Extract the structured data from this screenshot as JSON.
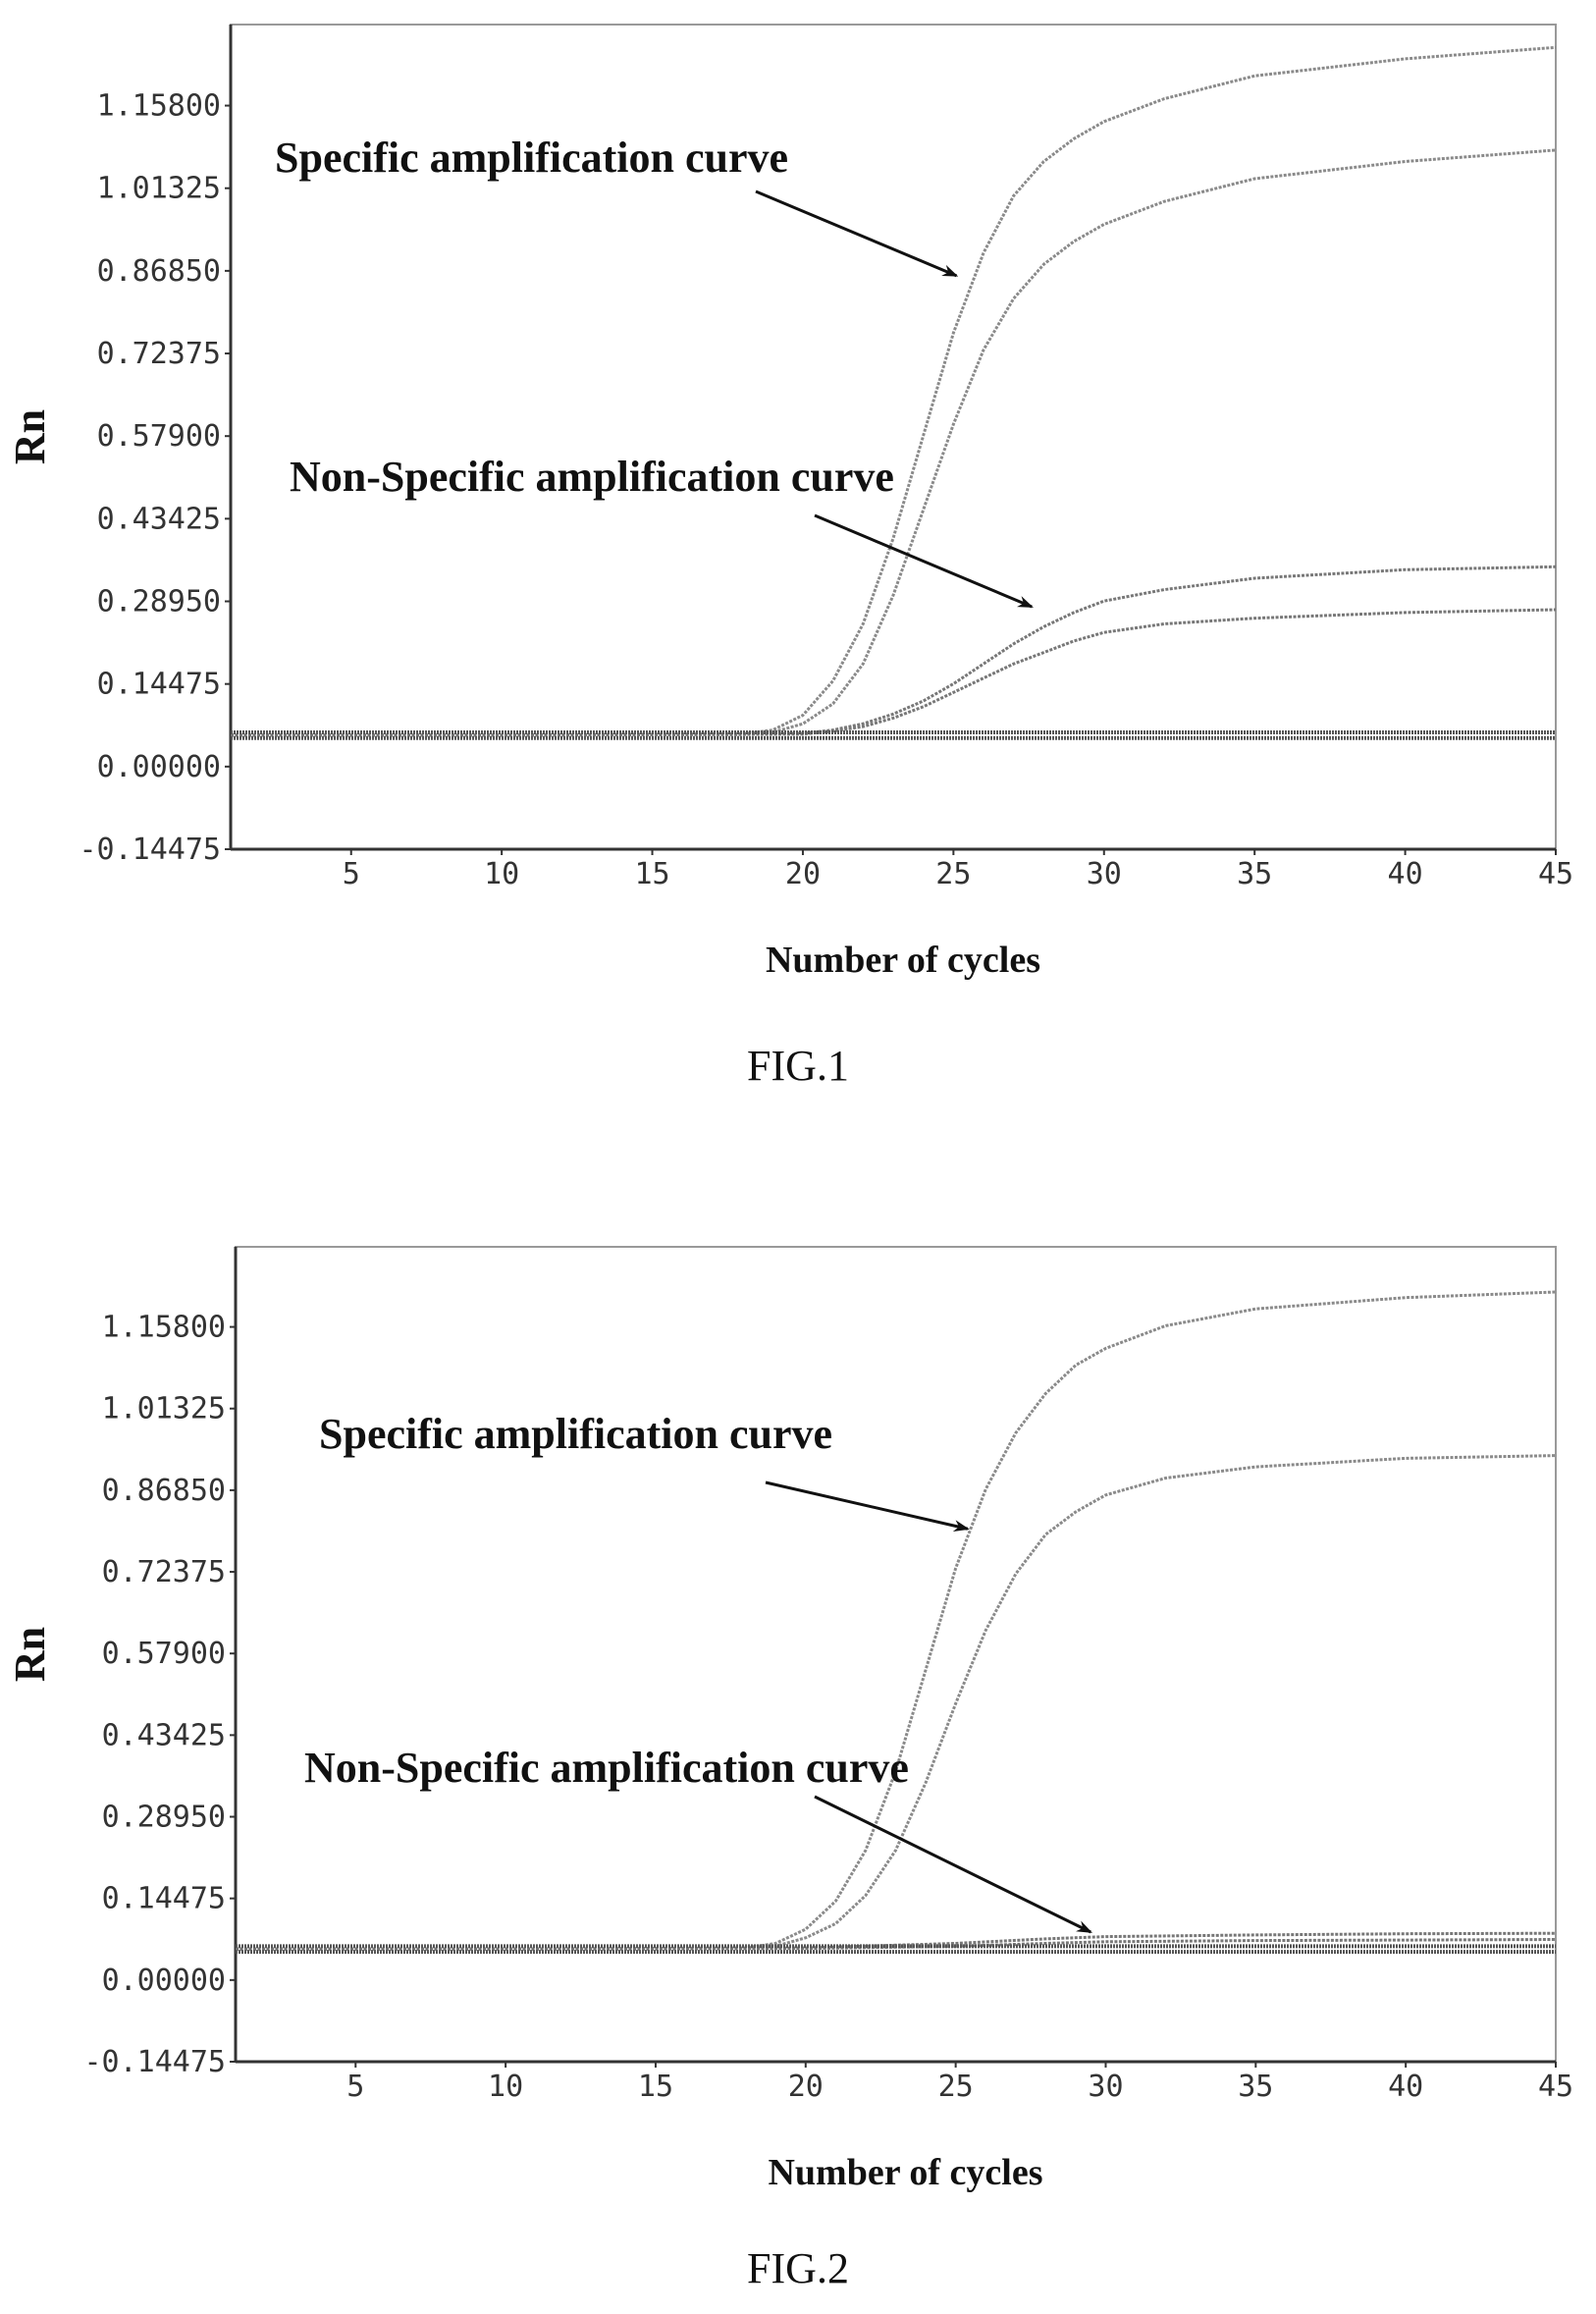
{
  "chart_data": [
    {
      "type": "line",
      "caption": "FIG.1",
      "xlabel": "Number of cycles",
      "ylabel": "Rn",
      "xlim": [
        1,
        45
      ],
      "ylim": [
        -0.14475,
        1.3
      ],
      "xticks": [
        5,
        10,
        15,
        20,
        25,
        30,
        35,
        40,
        45
      ],
      "yticks": [
        -0.14475,
        0.0,
        0.14475,
        0.2895,
        0.43425,
        0.579,
        0.72375,
        0.8685,
        1.01325,
        1.158
      ],
      "ytick_labels": [
        "-0.14475",
        "0.00000",
        "0.14475",
        "0.28950",
        "0.43425",
        "0.57900",
        "0.72375",
        "0.86850",
        "1.01325",
        "1.15800"
      ],
      "annotations": [
        {
          "text": "Specific amplification curve",
          "arrow_to": {
            "x": 25.1,
            "y": 0.86
          }
        },
        {
          "text": "Non-Specific amplification curve",
          "arrow_to": {
            "x": 27.6,
            "y": 0.28
          }
        }
      ],
      "series": [
        {
          "group": "specific",
          "x": [
            1,
            10,
            18,
            19,
            20,
            21,
            22,
            23,
            24,
            25,
            26,
            27,
            28,
            29,
            30,
            32,
            35,
            40,
            45
          ],
          "y": [
            0.055,
            0.055,
            0.057,
            0.064,
            0.09,
            0.15,
            0.25,
            0.4,
            0.58,
            0.76,
            0.9,
            1.0,
            1.06,
            1.1,
            1.13,
            1.17,
            1.21,
            1.24,
            1.26
          ]
        },
        {
          "group": "specific",
          "x": [
            1,
            10,
            18,
            19,
            20,
            21,
            22,
            23,
            24,
            25,
            26,
            27,
            28,
            29,
            30,
            32,
            35,
            40,
            45
          ],
          "y": [
            0.055,
            0.055,
            0.056,
            0.06,
            0.075,
            0.11,
            0.18,
            0.3,
            0.45,
            0.6,
            0.73,
            0.82,
            0.88,
            0.92,
            0.95,
            0.99,
            1.03,
            1.06,
            1.08
          ]
        },
        {
          "group": "non-specific",
          "x": [
            1,
            10,
            20,
            21,
            22,
            23,
            24,
            25,
            26,
            27,
            28,
            29,
            30,
            32,
            35,
            40,
            45
          ],
          "y": [
            0.055,
            0.055,
            0.058,
            0.064,
            0.075,
            0.092,
            0.115,
            0.145,
            0.18,
            0.215,
            0.245,
            0.27,
            0.29,
            0.31,
            0.33,
            0.345,
            0.35
          ]
        },
        {
          "group": "non-specific",
          "x": [
            1,
            10,
            20,
            21,
            22,
            23,
            24,
            25,
            26,
            27,
            28,
            29,
            30,
            32,
            35,
            40,
            45
          ],
          "y": [
            0.055,
            0.055,
            0.057,
            0.062,
            0.07,
            0.085,
            0.105,
            0.13,
            0.155,
            0.18,
            0.2,
            0.22,
            0.235,
            0.25,
            0.26,
            0.27,
            0.275
          ]
        },
        {
          "group": "baseline",
          "x": [
            1,
            45
          ],
          "y": [
            0.05,
            0.05
          ]
        },
        {
          "group": "baseline",
          "x": [
            1,
            45
          ],
          "y": [
            0.06,
            0.06
          ]
        }
      ]
    },
    {
      "type": "line",
      "caption": "FIG.2",
      "xlabel": "Number of cycles",
      "ylabel": "Rn",
      "xlim": [
        1,
        45
      ],
      "ylim": [
        -0.14475,
        1.3
      ],
      "xticks": [
        5,
        10,
        15,
        20,
        25,
        30,
        35,
        40,
        45
      ],
      "yticks": [
        -0.14475,
        0.0,
        0.14475,
        0.2895,
        0.43425,
        0.579,
        0.72375,
        0.8685,
        1.01325,
        1.158
      ],
      "ytick_labels": [
        "-0.14475",
        "0.00000",
        "0.14475",
        "0.28950",
        "0.43425",
        "0.57900",
        "0.72375",
        "0.86850",
        "1.01325",
        "1.15800"
      ],
      "annotations": [
        {
          "text": "Specific amplification curve",
          "arrow_to": {
            "x": 25.4,
            "y": 0.8
          }
        },
        {
          "text": "Non-Specific amplification curve",
          "arrow_to": {
            "x": 29.5,
            "y": 0.085
          }
        }
      ],
      "series": [
        {
          "group": "specific",
          "x": [
            1,
            10,
            18,
            19,
            20,
            21,
            22,
            23,
            24,
            25,
            26,
            27,
            28,
            29,
            30,
            32,
            35,
            40,
            45
          ],
          "y": [
            0.055,
            0.055,
            0.057,
            0.065,
            0.09,
            0.14,
            0.23,
            0.37,
            0.55,
            0.73,
            0.87,
            0.97,
            1.04,
            1.09,
            1.12,
            1.16,
            1.19,
            1.21,
            1.22
          ]
        },
        {
          "group": "specific",
          "x": [
            1,
            10,
            18,
            19,
            20,
            21,
            22,
            23,
            24,
            25,
            26,
            27,
            28,
            29,
            30,
            32,
            35,
            40,
            45
          ],
          "y": [
            0.055,
            0.055,
            0.056,
            0.06,
            0.075,
            0.1,
            0.15,
            0.23,
            0.35,
            0.49,
            0.62,
            0.72,
            0.79,
            0.83,
            0.86,
            0.89,
            0.91,
            0.925,
            0.93
          ]
        },
        {
          "group": "non-specific",
          "x": [
            1,
            15,
            20,
            25,
            28,
            30,
            35,
            40,
            45
          ],
          "y": [
            0.055,
            0.055,
            0.057,
            0.065,
            0.073,
            0.077,
            0.08,
            0.082,
            0.083
          ]
        },
        {
          "group": "non-specific",
          "x": [
            1,
            15,
            20,
            25,
            28,
            30,
            35,
            40,
            45
          ],
          "y": [
            0.055,
            0.055,
            0.056,
            0.06,
            0.065,
            0.068,
            0.07,
            0.071,
            0.072
          ]
        },
        {
          "group": "baseline",
          "x": [
            1,
            45
          ],
          "y": [
            0.05,
            0.05
          ]
        },
        {
          "group": "baseline",
          "x": [
            1,
            45
          ],
          "y": [
            0.06,
            0.06
          ]
        }
      ]
    }
  ]
}
